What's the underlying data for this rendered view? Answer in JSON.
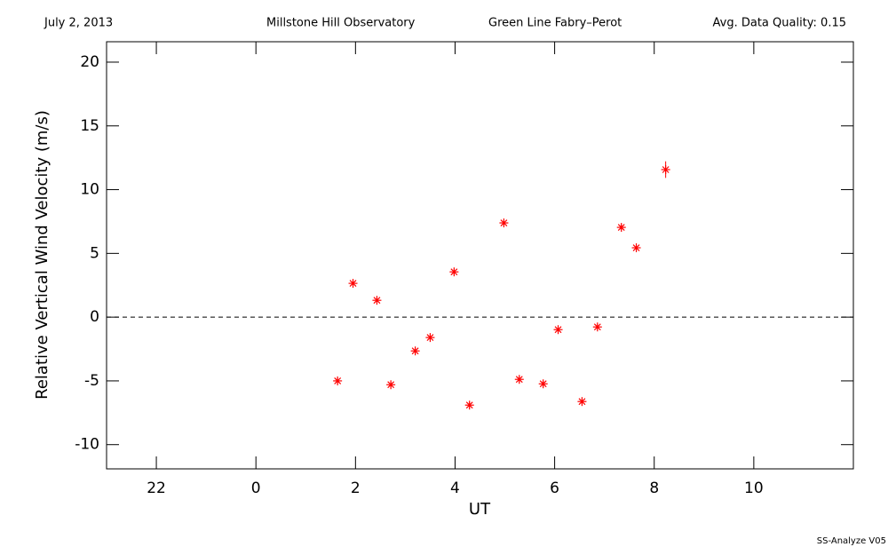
{
  "chart_data": {
    "type": "scatter",
    "header": [
      "July 2, 2013",
      "Millstone Hill Observatory",
      "Green Line Fabry–Perot",
      "Avg. Data Quality: 0.15"
    ],
    "xlabel": "UT",
    "ylabel": "Relative Vertical Wind Velocity (m/s)",
    "footer": "SS-Analyze V05",
    "x": [
      25.64,
      25.95,
      26.43,
      26.71,
      27.2,
      27.5,
      27.98,
      28.29,
      28.98,
      29.29,
      29.77,
      30.07,
      30.55,
      30.86,
      31.34,
      31.64,
      32.23
    ],
    "values": [
      -5.0,
      2.65,
      1.32,
      -5.3,
      -2.65,
      -1.6,
      3.55,
      -6.9,
      7.39,
      -4.88,
      -5.23,
      -0.98,
      -6.62,
      -0.77,
      7.04,
      5.44,
      11.57
    ],
    "errors": [
      0.2,
      0.2,
      0.2,
      0.2,
      0.2,
      0.2,
      0.2,
      0.2,
      0.2,
      0.2,
      0.2,
      0.2,
      0.2,
      0.2,
      0.2,
      0.2,
      0.65
    ],
    "color": "#ff0000",
    "xlim": [
      21,
      36
    ],
    "ylim": [
      -11.9,
      21.6
    ],
    "xticks": [
      {
        "value": 22,
        "label": "22"
      },
      {
        "value": 24,
        "label": "0"
      },
      {
        "value": 26,
        "label": "2"
      },
      {
        "value": 28,
        "label": "4"
      },
      {
        "value": 30,
        "label": "6"
      },
      {
        "value": 32,
        "label": "8"
      },
      {
        "value": 34,
        "label": "10"
      }
    ],
    "yticks": [
      -10,
      -5,
      0,
      5,
      10,
      15,
      20
    ],
    "reference_line": 0
  }
}
